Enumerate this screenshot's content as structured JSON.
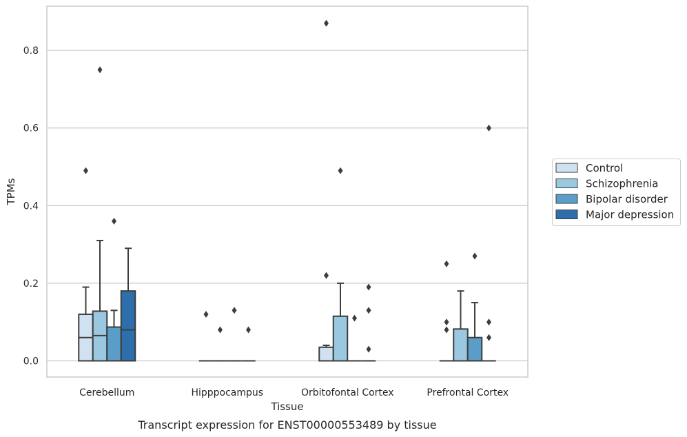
{
  "chart_data": {
    "type": "box",
    "xlabel": "Tissue",
    "ylabel": "TPMs",
    "caption": "Transcript expression for ENST00000553489 by tissue",
    "ylim": [
      -0.04,
      0.92
    ],
    "y_ticks": [
      "0.0",
      "0.2",
      "0.4",
      "0.6",
      "0.8"
    ],
    "grid": "horizontal",
    "legend_position": "right",
    "categories": [
      "Cerebellum",
      "Hipppocampus",
      "Orbitofontal Cortex",
      "Prefrontal Cortex"
    ],
    "series": [
      {
        "name": "Control",
        "color": "#d0e1f2",
        "boxes": [
          {
            "q1": 0.0,
            "median": 0.06,
            "q3": 0.12,
            "whisker_low": 0.0,
            "whisker_high": 0.19,
            "outliers": [
              0.49
            ]
          },
          {
            "q1": 0.0,
            "median": 0.0,
            "q3": 0.0,
            "whisker_low": 0.0,
            "whisker_high": 0.0,
            "outliers": [
              0.12
            ]
          },
          {
            "q1": 0.0,
            "median": 0.0,
            "q3": 0.035,
            "whisker_low": 0.0,
            "whisker_high": 0.04,
            "outliers": [
              0.22,
              0.87
            ]
          },
          {
            "q1": 0.0,
            "median": 0.0,
            "q3": 0.0,
            "whisker_low": 0.0,
            "whisker_high": 0.0,
            "outliers": [
              0.08,
              0.1,
              0.25
            ]
          }
        ]
      },
      {
        "name": "Schizophrenia",
        "color": "#9ac8e0",
        "boxes": [
          {
            "q1": 0.0,
            "median": 0.065,
            "q3": 0.128,
            "whisker_low": 0.0,
            "whisker_high": 0.31,
            "outliers": [
              0.75
            ]
          },
          {
            "q1": 0.0,
            "median": 0.0,
            "q3": 0.0,
            "whisker_low": 0.0,
            "whisker_high": 0.0,
            "outliers": [
              0.08
            ]
          },
          {
            "q1": 0.0,
            "median": 0.0,
            "q3": 0.115,
            "whisker_low": 0.0,
            "whisker_high": 0.2,
            "outliers": [
              0.49
            ]
          },
          {
            "q1": 0.0,
            "median": 0.0,
            "q3": 0.082,
            "whisker_low": 0.0,
            "whisker_high": 0.18,
            "outliers": []
          }
        ]
      },
      {
        "name": "Bipolar disorder",
        "color": "#5b9dc9",
        "boxes": [
          {
            "q1": 0.0,
            "median": 0.0,
            "q3": 0.087,
            "whisker_low": 0.0,
            "whisker_high": 0.13,
            "outliers": [
              0.36
            ]
          },
          {
            "q1": 0.0,
            "median": 0.0,
            "q3": 0.0,
            "whisker_low": 0.0,
            "whisker_high": 0.0,
            "outliers": [
              0.13
            ]
          },
          {
            "q1": 0.0,
            "median": 0.0,
            "q3": 0.0,
            "whisker_low": 0.0,
            "whisker_high": 0.0,
            "outliers": [
              0.11
            ]
          },
          {
            "q1": 0.0,
            "median": 0.0,
            "q3": 0.06,
            "whisker_low": 0.0,
            "whisker_high": 0.15,
            "outliers": [
              0.27
            ]
          }
        ]
      },
      {
        "name": "Major depression",
        "color": "#2d6eab",
        "boxes": [
          {
            "q1": 0.0,
            "median": 0.08,
            "q3": 0.18,
            "whisker_low": 0.0,
            "whisker_high": 0.29,
            "outliers": []
          },
          {
            "q1": 0.0,
            "median": 0.0,
            "q3": 0.0,
            "whisker_low": 0.0,
            "whisker_high": 0.0,
            "outliers": [
              0.08
            ]
          },
          {
            "q1": 0.0,
            "median": 0.0,
            "q3": 0.0,
            "whisker_low": 0.0,
            "whisker_high": 0.0,
            "outliers": [
              0.03,
              0.13,
              0.19
            ]
          },
          {
            "q1": 0.0,
            "median": 0.0,
            "q3": 0.0,
            "whisker_low": 0.0,
            "whisker_high": 0.0,
            "outliers": [
              0.06,
              0.1,
              0.6
            ]
          }
        ]
      }
    ]
  }
}
